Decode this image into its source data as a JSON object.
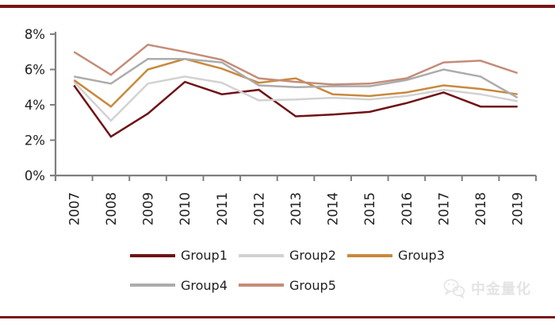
{
  "chart_data": {
    "type": "line",
    "title": "",
    "xlabel": "",
    "ylabel": "",
    "x": [
      "2007",
      "2008",
      "2009",
      "2010",
      "2011",
      "2012",
      "2013",
      "2014",
      "2015",
      "2016",
      "2017",
      "2018",
      "2019"
    ],
    "series": [
      {
        "name": "Group1",
        "color": "#6f1216",
        "values": [
          5.1,
          2.2,
          3.5,
          5.3,
          4.6,
          4.85,
          3.35,
          3.45,
          3.6,
          4.1,
          4.7,
          3.9,
          3.9
        ]
      },
      {
        "name": "Group2",
        "color": "#d2d2d2",
        "values": [
          5.3,
          3.1,
          5.2,
          5.6,
          5.25,
          4.25,
          4.3,
          4.4,
          4.3,
          4.5,
          4.85,
          4.6,
          4.2
        ]
      },
      {
        "name": "Group3",
        "color": "#c8893e",
        "values": [
          5.4,
          3.9,
          6.0,
          6.6,
          6.05,
          5.25,
          5.5,
          4.6,
          4.5,
          4.7,
          5.1,
          4.9,
          4.6
        ]
      },
      {
        "name": "Group4",
        "color": "#acacac",
        "values": [
          5.6,
          5.2,
          6.6,
          6.6,
          6.4,
          5.1,
          5.0,
          5.05,
          5.05,
          5.4,
          6.0,
          5.6,
          4.4
        ]
      },
      {
        "name": "Group5",
        "color": "#c48c78",
        "values": [
          7.0,
          5.7,
          7.4,
          7.0,
          6.55,
          5.5,
          5.3,
          5.15,
          5.2,
          5.5,
          6.4,
          6.5,
          5.8
        ]
      }
    ],
    "ylim": [
      0,
      8
    ],
    "yticks": [
      {
        "value": 0,
        "label": "0%"
      },
      {
        "value": 2,
        "label": "2%"
      },
      {
        "value": 4,
        "label": "4%"
      },
      {
        "value": 6,
        "label": "6%"
      },
      {
        "value": 8,
        "label": "8%"
      }
    ],
    "grid": false,
    "legend_position": "bottom",
    "legend_rows": [
      3,
      2
    ]
  },
  "colors": {
    "accent_rule": "#7a1518",
    "axis": "#7f7f7f",
    "tick_text": "#1f1f1f",
    "watermark": "#e4e4e4"
  },
  "watermark": {
    "text": "中金量化",
    "icon": "wechat-icon"
  }
}
